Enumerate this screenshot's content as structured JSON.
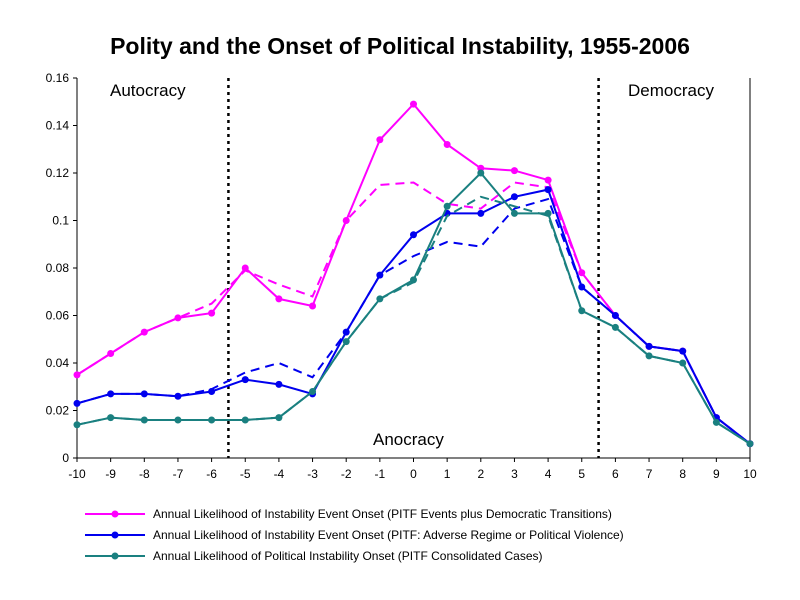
{
  "title": "Polity and the Onset of Political Instability, 1955-2006",
  "regions": {
    "left": "Autocracy",
    "middle": "Anocracy",
    "right": "Democracy"
  },
  "chart_data": {
    "type": "line",
    "title": "Polity and the Onset of Political Instability, 1955-2006",
    "xlabel": "",
    "ylabel": "",
    "x": [
      -10,
      -9,
      -8,
      -7,
      -6,
      -5,
      -4,
      -3,
      -2,
      -1,
      0,
      1,
      2,
      3,
      4,
      5,
      6,
      7,
      8,
      9,
      10
    ],
    "xlim": [
      -10,
      10
    ],
    "ylim": [
      0,
      0.16
    ],
    "yticks": [
      0,
      0.02,
      0.04,
      0.06,
      0.08,
      0.1,
      0.12,
      0.14,
      0.16
    ],
    "ytick_labels": [
      "0",
      "0.02",
      "0.04",
      "0.06",
      "0.08",
      "0.1",
      "0.12",
      "0.14",
      "0.16"
    ],
    "grid": false,
    "legend_position": "bottom",
    "vertical_lines": [
      -5.5,
      5.5
    ],
    "series": [
      {
        "name": "Annual Likelihood of Instability Event Onset (PITF Events plus Democratic Transitions)",
        "color": "#ff00ff",
        "values": [
          0.035,
          0.044,
          0.053,
          0.059,
          0.061,
          0.08,
          0.067,
          0.064,
          0.1,
          0.134,
          0.149,
          0.132,
          0.122,
          0.121,
          0.117,
          0.078,
          0.06,
          0.047,
          0.045,
          0.017,
          0.006
        ],
        "trend": [
          0.035,
          0.044,
          0.053,
          0.059,
          0.065,
          0.079,
          0.073,
          0.068,
          0.1,
          0.115,
          0.116,
          0.107,
          0.105,
          0.116,
          0.114,
          0.078,
          0.06,
          0.047,
          0.045,
          0.017,
          0.006
        ]
      },
      {
        "name": "Annual Likelihood of Instability Event Onset (PITF: Adverse Regime or Political Violence)",
        "color": "#0000ee",
        "values": [
          0.023,
          0.027,
          0.027,
          0.026,
          0.028,
          0.033,
          0.031,
          0.027,
          0.053,
          0.077,
          0.094,
          0.103,
          0.103,
          0.11,
          0.113,
          0.072,
          0.06,
          0.047,
          0.045,
          0.017,
          0.006
        ],
        "trend": [
          0.023,
          0.027,
          0.027,
          0.026,
          0.029,
          0.036,
          0.04,
          0.034,
          0.053,
          0.077,
          0.085,
          0.091,
          0.089,
          0.105,
          0.109,
          0.072,
          0.06,
          0.047,
          0.045,
          0.017,
          0.006
        ]
      },
      {
        "name": "Annual Likelihood of Political Instability Onset (PITF Consolidated Cases)",
        "color": "#1a8080",
        "values": [
          0.014,
          0.017,
          0.016,
          0.016,
          0.016,
          0.016,
          0.017,
          0.028,
          0.049,
          0.067,
          0.075,
          0.106,
          0.12,
          0.103,
          0.103,
          0.062,
          0.055,
          0.043,
          0.04,
          0.015,
          0.006
        ],
        "trend": [
          0.014,
          0.017,
          0.016,
          0.016,
          0.016,
          0.016,
          0.017,
          0.028,
          0.049,
          0.067,
          0.074,
          0.102,
          0.11,
          0.106,
          0.102,
          0.062,
          0.055,
          0.043,
          0.04,
          0.015,
          0.006
        ]
      }
    ]
  }
}
